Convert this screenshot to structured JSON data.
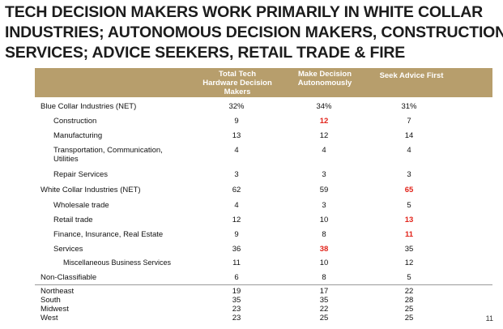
{
  "title": {
    "lines": [
      "TECH DECISION MAKERS WORK PRIMARILY IN WHITE COLLAR",
      "INDUSTRIES; AUTONOMOUS DECISION MAKERS, CONSTRUCTION &",
      "SERVICES; ADVICE SEEKERS, RETAIL TRADE & FIRE"
    ]
  },
  "table": {
    "headers": [
      [
        "Total Tech",
        "Hardware Decision",
        "Makers"
      ],
      [
        "Make Decision",
        "Autonomously"
      ],
      [
        "Seek Advice First"
      ]
    ],
    "header_color": "#b79e6c",
    "highlight_color": "#e2231a",
    "rows": [
      {
        "label": "Blue Collar Industries (NET)",
        "values": [
          "32%",
          "34%",
          "31%"
        ]
      },
      {
        "label": "Construction",
        "values": [
          "9",
          "12",
          "7"
        ],
        "highlight": [
          false,
          true,
          false
        ]
      },
      {
        "label": "Manufacturing",
        "values": [
          "13",
          "12",
          "14"
        ]
      },
      {
        "label": "Transportation, Communication,",
        "label2": "Utilities",
        "values": [
          "4",
          "4",
          "4"
        ]
      },
      {
        "label": "Repair Services",
        "values": [
          "3",
          "3",
          "3"
        ]
      },
      {
        "label": "White Collar Industries (NET)",
        "values": [
          "62",
          "59",
          "65"
        ],
        "highlight": [
          false,
          false,
          true
        ]
      },
      {
        "label": "Wholesale trade",
        "values": [
          "4",
          "3",
          "5"
        ]
      },
      {
        "label": "Retail trade",
        "values": [
          "12",
          "10",
          "13"
        ],
        "highlight": [
          false,
          false,
          true
        ]
      },
      {
        "label": "Finance, Insurance, Real Estate",
        "values": [
          "9",
          "8",
          "11"
        ],
        "highlight": [
          false,
          false,
          true
        ]
      },
      {
        "label": "Services",
        "values": [
          "36",
          "38",
          "35"
        ],
        "highlight": [
          false,
          true,
          false
        ]
      },
      {
        "label": "Miscellaneous Business Services",
        "values": [
          "11",
          "10",
          "12"
        ]
      },
      {
        "label": "Non-Classifiable",
        "values": [
          "6",
          "8",
          "5"
        ]
      },
      {
        "label": "Northeast",
        "values": [
          "19",
          "17",
          "22"
        ]
      },
      {
        "label": "South",
        "values": [
          "35",
          "35",
          "28"
        ]
      },
      {
        "label": "Midwest",
        "values": [
          "23",
          "22",
          "25"
        ]
      },
      {
        "label": "West",
        "values": [
          "23",
          "25",
          "25"
        ]
      }
    ]
  },
  "page_number": "11"
}
